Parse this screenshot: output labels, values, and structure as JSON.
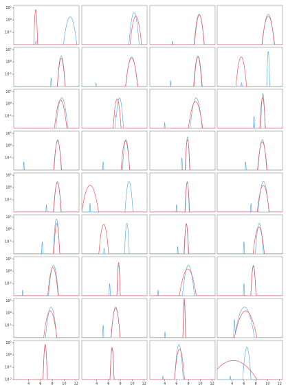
{
  "chart_data": {
    "type": "line",
    "layout": "grid of 9 rows x 4 columns of small line plots with shared x-axis",
    "y_scale": "log",
    "ylim": [
      0.01,
      15
    ],
    "xlim": [
      1.5,
      12.5
    ],
    "y_ticks": [
      {
        "value": 10,
        "exp": "1"
      },
      {
        "value": 1,
        "exp": "0"
      },
      {
        "value": 0.1,
        "exp": "-1"
      }
    ],
    "y_ticks_full_panel": [
      {
        "value": 10,
        "exp": "1"
      },
      {
        "value": 1,
        "exp": "0"
      },
      {
        "value": 0.1,
        "exp": "-1"
      },
      {
        "value": 0.01,
        "exp": "-2"
      }
    ],
    "y_tick_base": "10",
    "x_ticks": [
      4,
      6,
      8,
      10,
      12
    ],
    "xlabel": "",
    "ylabel": "",
    "colors": {
      "blue": "#5aaee0",
      "red": "#f0505a"
    },
    "rows": [
      [
        {
          "blue": [
            {
              "mu": 5.25,
              "s": 0.08,
              "h": 0.02
            },
            {
              "mu": 11.0,
              "s": 0.35,
              "h": 1.8
            }
          ],
          "red": [
            {
              "mu": 5.2,
              "s": 0.09,
              "h": 7.0
            }
          ]
        },
        {
          "blue": [
            {
              "mu": 10.3,
              "s": 0.25,
              "h": 4.0
            }
          ],
          "red": [
            {
              "mu": 10.6,
              "s": 0.3,
              "h": 2.0
            }
          ]
        },
        {
          "blue": [
            {
              "mu": 5.3,
              "s": 0.05,
              "h": 0.02
            },
            {
              "mu": 9.8,
              "s": 0.25,
              "h": 3.0
            }
          ],
          "red": [
            {
              "mu": 9.85,
              "s": 0.25,
              "h": 2.5
            }
          ]
        },
        {
          "blue": [
            {
              "mu": 10.1,
              "s": 0.3,
              "h": 3.0
            }
          ],
          "red": [
            {
              "mu": 10.1,
              "s": 0.33,
              "h": 2.0
            }
          ]
        }
      ],
      [
        {
          "blue": [
            {
              "mu": 7.8,
              "s": 0.05,
              "h": 0.05
            },
            {
              "mu": 9.5,
              "s": 0.2,
              "h": 3.0
            }
          ],
          "red": [
            {
              "mu": 9.5,
              "s": 0.2,
              "h": 2.0
            }
          ]
        },
        {
          "blue": [
            {
              "mu": 3.9,
              "s": 0.05,
              "h": 0.02
            },
            {
              "mu": 9.9,
              "s": 0.3,
              "h": 2.5
            }
          ],
          "red": [
            {
              "mu": 9.9,
              "s": 0.32,
              "h": 2.0
            }
          ]
        },
        {
          "blue": [
            {
              "mu": 5.0,
              "s": 0.05,
              "h": 0.03
            },
            {
              "mu": 9.6,
              "s": 0.22,
              "h": 3.0
            }
          ],
          "red": [
            {
              "mu": 9.6,
              "s": 0.2,
              "h": 2.5
            }
          ]
        },
        {
          "blue": [
            {
              "mu": 5.6,
              "s": 0.08,
              "h": 0.02
            },
            {
              "mu": 10.1,
              "s": 0.07,
              "h": 7.0
            }
          ],
          "red": [
            {
              "mu": 5.55,
              "s": 0.27,
              "h": 2.5
            }
          ]
        }
      ],
      [
        {
          "blue": [
            {
              "mu": 9.6,
              "s": 0.3,
              "h": 3.0
            }
          ],
          "red": [
            {
              "mu": 9.4,
              "s": 0.32,
              "h": 2.0
            }
          ]
        },
        {
          "blue": [
            {
              "mu": 7.2,
              "s": 0.05,
              "h": 0.1
            },
            {
              "mu": 7.85,
              "s": 0.2,
              "h": 3.0
            }
          ],
          "red": [
            {
              "mu": 7.45,
              "s": 0.2,
              "h": 2.5
            }
          ]
        },
        {
          "blue": [
            {
              "mu": 4.0,
              "s": 0.05,
              "h": 0.03
            },
            {
              "mu": 9.3,
              "s": 0.3,
              "h": 3.0
            }
          ],
          "red": [
            {
              "mu": 9.2,
              "s": 0.38,
              "h": 1.5
            }
          ]
        },
        {
          "blue": [
            {
              "mu": 7.7,
              "s": 0.05,
              "h": 0.1
            },
            {
              "mu": 9.2,
              "s": 0.1,
              "h": 7.0
            }
          ],
          "red": [
            {
              "mu": 9.15,
              "s": 0.14,
              "h": 3.0
            }
          ]
        }
      ],
      [
        {
          "blue": [
            {
              "mu": 3.2,
              "s": 0.05,
              "h": 0.05
            },
            {
              "mu": 8.9,
              "s": 0.18,
              "h": 3.0
            }
          ],
          "red": [
            {
              "mu": 8.9,
              "s": 0.2,
              "h": 2.5
            }
          ]
        },
        {
          "blue": [
            {
              "mu": 5.1,
              "s": 0.05,
              "h": 0.05
            },
            {
              "mu": 8.95,
              "s": 0.18,
              "h": 3.0
            }
          ],
          "red": [
            {
              "mu": 8.85,
              "s": 0.22,
              "h": 2.5
            }
          ]
        },
        {
          "blue": [
            {
              "mu": 6.9,
              "s": 0.05,
              "h": 0.1
            },
            {
              "mu": 7.85,
              "s": 0.1,
              "h": 5.0
            }
          ],
          "red": [
            {
              "mu": 7.85,
              "s": 0.12,
              "h": 3.0
            }
          ]
        },
        {
          "blue": [
            {
              "mu": 6.3,
              "s": 0.05,
              "h": 0.05
            },
            {
              "mu": 9.1,
              "s": 0.22,
              "h": 3.0
            }
          ],
          "red": [
            {
              "mu": 9.1,
              "s": 0.25,
              "h": 2.0
            }
          ]
        }
      ],
      [
        {
          "blue": [
            {
              "mu": 7.0,
              "s": 0.05,
              "h": 0.04
            },
            {
              "mu": 8.85,
              "s": 0.18,
              "h": 3.0
            }
          ],
          "red": [
            {
              "mu": 8.85,
              "s": 0.2,
              "h": 2.5
            }
          ]
        },
        {
          "blue": [
            {
              "mu": 2.9,
              "s": 0.05,
              "h": 0.05
            },
            {
              "mu": 9.45,
              "s": 0.2,
              "h": 3.0
            }
          ],
          "red": [
            {
              "mu": 2.9,
              "s": 0.45,
              "h": 1.5
            }
          ]
        },
        {
          "blue": [
            {
              "mu": 6.0,
              "s": 0.05,
              "h": 0.04
            },
            {
              "mu": 7.8,
              "s": 0.1,
              "h": 3.0
            }
          ],
          "red": [
            {
              "mu": 7.8,
              "s": 0.12,
              "h": 2.5
            }
          ]
        },
        {
          "blue": [
            {
              "mu": 7.2,
              "s": 0.05,
              "h": 0.05
            },
            {
              "mu": 9.3,
              "s": 0.27,
              "h": 3.0
            }
          ],
          "red": [
            {
              "mu": 9.25,
              "s": 0.32,
              "h": 1.5
            }
          ]
        }
      ],
      [
        {
          "blue": [
            {
              "mu": 6.3,
              "s": 0.05,
              "h": 0.1
            },
            {
              "mu": 8.7,
              "s": 0.15,
              "h": 7.0
            }
          ],
          "red": [
            {
              "mu": 8.75,
              "s": 0.15,
              "h": 3.0
            }
          ]
        },
        {
          "blue": [
            {
              "mu": 5.25,
              "s": 0.05,
              "h": 0.03
            },
            {
              "mu": 9.1,
              "s": 0.12,
              "h": 3.0
            }
          ],
          "red": [
            {
              "mu": 5.2,
              "s": 0.25,
              "h": 2.5
            }
          ]
        },
        {
          "blue": [
            {
              "mu": 6.2,
              "s": 0.05,
              "h": 0.04
            },
            {
              "mu": 7.65,
              "s": 0.1,
              "h": 3.0
            }
          ],
          "red": [
            {
              "mu": 7.65,
              "s": 0.12,
              "h": 2.5
            }
          ]
        },
        {
          "blue": [
            {
              "mu": 6.0,
              "s": 0.05,
              "h": 0.1
            },
            {
              "mu": 8.6,
              "s": 0.2,
              "h": 3.0
            }
          ],
          "red": [
            {
              "mu": 8.5,
              "s": 0.3,
              "h": 1.5
            }
          ]
        }
      ],
      [
        {
          "blue": [
            {
              "mu": 3.0,
              "s": 0.05,
              "h": 0.03
            },
            {
              "mu": 8.2,
              "s": 0.25,
              "h": 3.0
            }
          ],
          "red": [
            {
              "mu": 8.1,
              "s": 0.27,
              "h": 2.0
            }
          ]
        },
        {
          "blue": [
            {
              "mu": 6.2,
              "s": 0.05,
              "h": 0.1
            },
            {
              "mu": 7.7,
              "s": 0.08,
              "h": 3.0
            }
          ],
          "red": [
            {
              "mu": 7.7,
              "s": 0.08,
              "h": 5.0
            }
          ]
        },
        {
          "blue": [
            {
              "mu": 2.9,
              "s": 0.05,
              "h": 0.03
            },
            {
              "mu": 8.0,
              "s": 0.3,
              "h": 3.0
            }
          ],
          "red": [
            {
              "mu": 7.9,
              "s": 0.45,
              "h": 1.5
            }
          ]
        },
        {
          "blue": [
            {
              "mu": 6.0,
              "s": 0.05,
              "h": 0.1
            },
            {
              "mu": 7.6,
              "s": 0.13,
              "h": 3.0
            }
          ],
          "red": [
            {
              "mu": 7.6,
              "s": 0.13,
              "h": 2.5
            }
          ]
        }
      ],
      [
        {
          "blue": [
            {
              "mu": 7.8,
              "s": 0.28,
              "h": 3.0
            }
          ],
          "red": [
            {
              "mu": 7.65,
              "s": 0.35,
              "h": 1.5
            }
          ]
        },
        {
          "blue": [
            {
              "mu": 5.1,
              "s": 0.05,
              "h": 0.1
            },
            {
              "mu": 7.2,
              "s": 0.22,
              "h": 3.0
            }
          ],
          "red": [
            {
              "mu": 7.2,
              "s": 0.23,
              "h": 2.5
            }
          ]
        },
        {
          "blue": [
            {
              "mu": 4.05,
              "s": 0.05,
              "h": 0.03
            },
            {
              "mu": 7.3,
              "s": 0.06,
              "h": 7.0
            }
          ],
          "red": [
            {
              "mu": 7.3,
              "s": 0.06,
              "h": 15.0
            }
          ]
        },
        {
          "blue": [
            {
              "mu": 4.4,
              "s": 0.05,
              "h": 0.3
            },
            {
              "mu": 6.1,
              "s": 0.5,
              "h": 3.0
            }
          ],
          "red": [
            {
              "mu": 6.3,
              "s": 0.6,
              "h": 1.5
            }
          ]
        }
      ],
      [
        {
          "blue": [
            {
              "mu": 6.8,
              "s": 0.1,
              "h": 7.0
            }
          ],
          "red": [
            {
              "mu": 6.8,
              "s": 0.1,
              "h": 7.0
            }
          ]
        },
        {
          "blue": [
            {
              "mu": 6.6,
              "s": 0.1,
              "h": 3.0
            }
          ],
          "red": [
            {
              "mu": 6.6,
              "s": 0.1,
              "h": 4.0
            }
          ]
        },
        {
          "blue": [
            {
              "mu": 3.7,
              "s": 0.05,
              "h": 0.02
            },
            {
              "mu": 6.4,
              "s": 0.2,
              "h": 7.0
            }
          ],
          "red": [
            {
              "mu": 6.5,
              "s": 0.25,
              "h": 3.0
            }
          ]
        },
        {
          "blue": [
            {
              "mu": 3.7,
              "s": 0.05,
              "h": 0.02
            },
            {
              "mu": 6.5,
              "s": 0.2,
              "h": 4.0
            }
          ],
          "red": [
            {
              "mu": 4.2,
              "s": 1.5,
              "h": 0.35
            }
          ]
        }
      ]
    ]
  }
}
